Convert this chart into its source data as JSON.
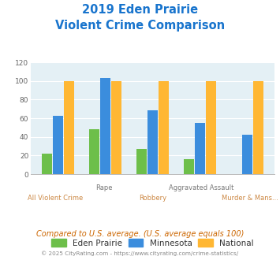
{
  "title_line1": "2019 Eden Prairie",
  "title_line2": "Violent Crime Comparison",
  "title_color": "#1874CD",
  "categories": [
    "All Violent Crime",
    "Rape",
    "Robbery",
    "Aggravated Assault",
    "Murder & Mans..."
  ],
  "x_labels_top": [
    "",
    "Rape",
    "",
    "Aggravated Assault",
    ""
  ],
  "x_labels_bottom": [
    "All Violent Crime",
    "",
    "Robbery",
    "",
    "Murder & Mans..."
  ],
  "eden_prairie": [
    22,
    48,
    27,
    16,
    0
  ],
  "minnesota": [
    63,
    103,
    69,
    55,
    42
  ],
  "national": [
    100,
    100,
    100,
    100,
    100
  ],
  "eden_color": "#6dbf4a",
  "minnesota_color": "#3b8ddd",
  "national_color": "#ffb733",
  "ylim": [
    0,
    120
  ],
  "yticks": [
    0,
    20,
    40,
    60,
    80,
    100,
    120
  ],
  "plot_bg": "#e4f0f5",
  "footer_text": "Compared to U.S. average. (U.S. average equals 100)",
  "footer_color": "#cc6600",
  "copyright_text": "© 2025 CityRating.com - https://www.cityrating.com/crime-statistics/",
  "copyright_color": "#888888",
  "legend_labels": [
    "Eden Prairie",
    "Minnesota",
    "National"
  ],
  "bar_width": 0.22
}
